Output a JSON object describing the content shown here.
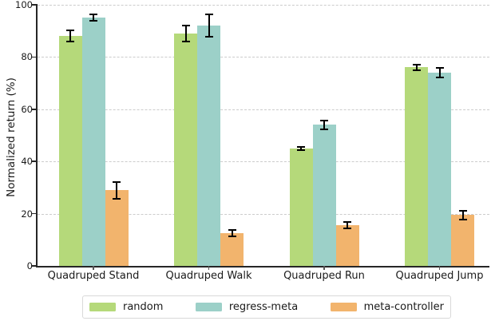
{
  "chart_data": {
    "type": "bar",
    "title": "",
    "xlabel": "",
    "ylabel": "Normalized return (%)",
    "ylim": [
      0,
      100
    ],
    "yticks": [
      0,
      20,
      40,
      60,
      80,
      100
    ],
    "grid": "horizontal-dashed",
    "legend_position": "bottom",
    "categories": [
      "Quadruped Stand",
      "Quadruped Walk",
      "Quadruped Run",
      "Quadruped Jump"
    ],
    "series": [
      {
        "name": "random",
        "color": "#b5d97a",
        "values": [
          88,
          89,
          45,
          76
        ],
        "errors": [
          2.5,
          3.5,
          1,
          1.5
        ]
      },
      {
        "name": "regress-meta",
        "color": "#9cd0c8",
        "values": [
          95,
          92,
          54,
          74
        ],
        "errors": [
          1.5,
          4.5,
          2,
          2
        ]
      },
      {
        "name": "meta-controller",
        "color": "#f2b46d",
        "values": [
          29,
          12.5,
          15.5,
          19.5
        ],
        "errors": [
          3.5,
          1.5,
          1.5,
          2
        ]
      }
    ],
    "error_bar_color": "#000000",
    "axis_color": "#262626",
    "gridline_color": "#cccccc"
  }
}
